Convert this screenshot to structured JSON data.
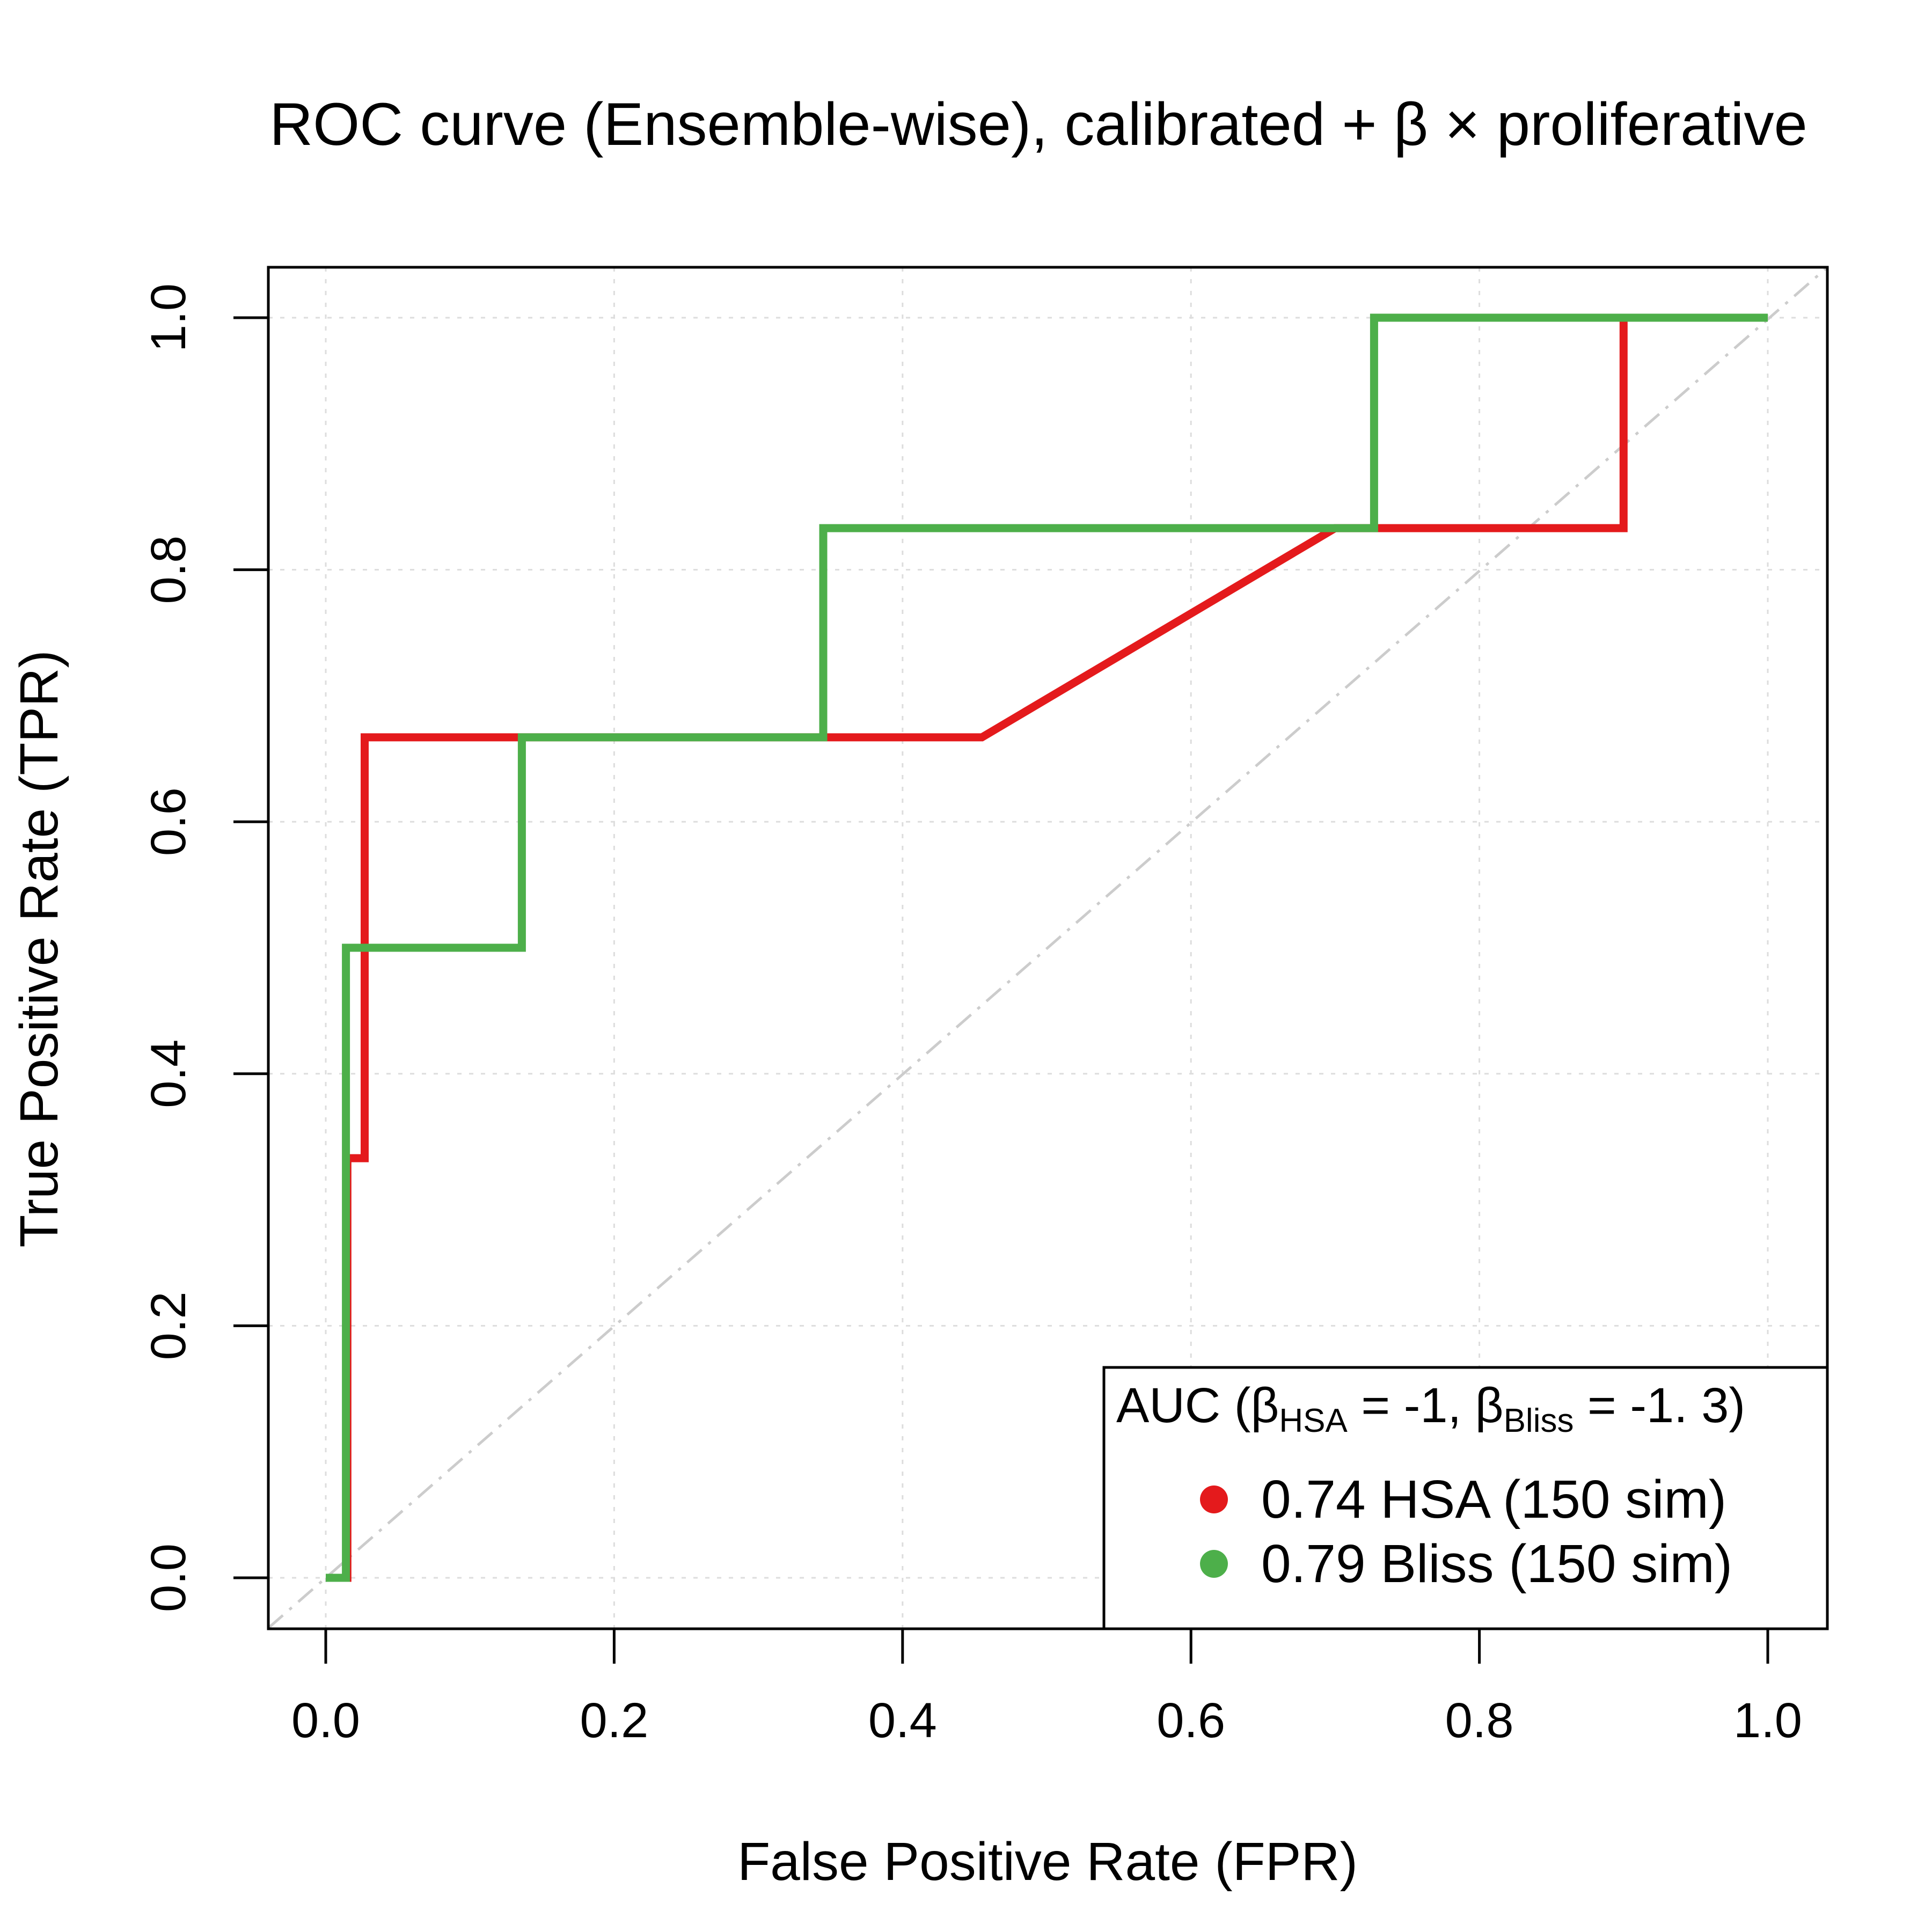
{
  "chart_data": {
    "type": "line",
    "title": "ROC curve (Ensemble-wise), calibrated + β × proliferative",
    "xlabel": "False Positive Rate (FPR)",
    "ylabel": "True Positive Rate (TPR)",
    "xlim": [
      0,
      1
    ],
    "ylim": [
      0,
      1
    ],
    "xticks": [
      "0.0",
      "0.2",
      "0.4",
      "0.6",
      "0.8",
      "1.0"
    ],
    "yticks": [
      "0.0",
      "0.2",
      "0.4",
      "0.6",
      "0.8",
      "1.0"
    ],
    "grid": true,
    "reference_line": "diagonal dashed",
    "legend": {
      "position": "bottom-right",
      "title_parts": [
        "AUC (",
        "β",
        "HSA",
        " = -1, ",
        "β",
        "Bliss",
        " = -1. 3)"
      ]
    },
    "series": [
      {
        "name": "0.74 HSA (150 sim)",
        "color": "#e41a1c",
        "x": [
          0.0,
          0.015,
          0.015,
          0.027,
          0.027,
          0.455,
          0.7,
          0.9,
          0.9,
          1.0
        ],
        "y": [
          0.0,
          0.0,
          0.333,
          0.333,
          0.667,
          0.667,
          0.833,
          0.833,
          1.0,
          1.0
        ]
      },
      {
        "name": "0.79 Bliss (150 sim)",
        "color": "#4daf4a",
        "x": [
          0.0,
          0.014,
          0.014,
          0.136,
          0.136,
          0.345,
          0.345,
          0.727,
          0.727,
          1.0
        ],
        "y": [
          0.0,
          0.0,
          0.5,
          0.5,
          0.667,
          0.667,
          0.833,
          0.833,
          1.0,
          1.0
        ]
      }
    ]
  }
}
